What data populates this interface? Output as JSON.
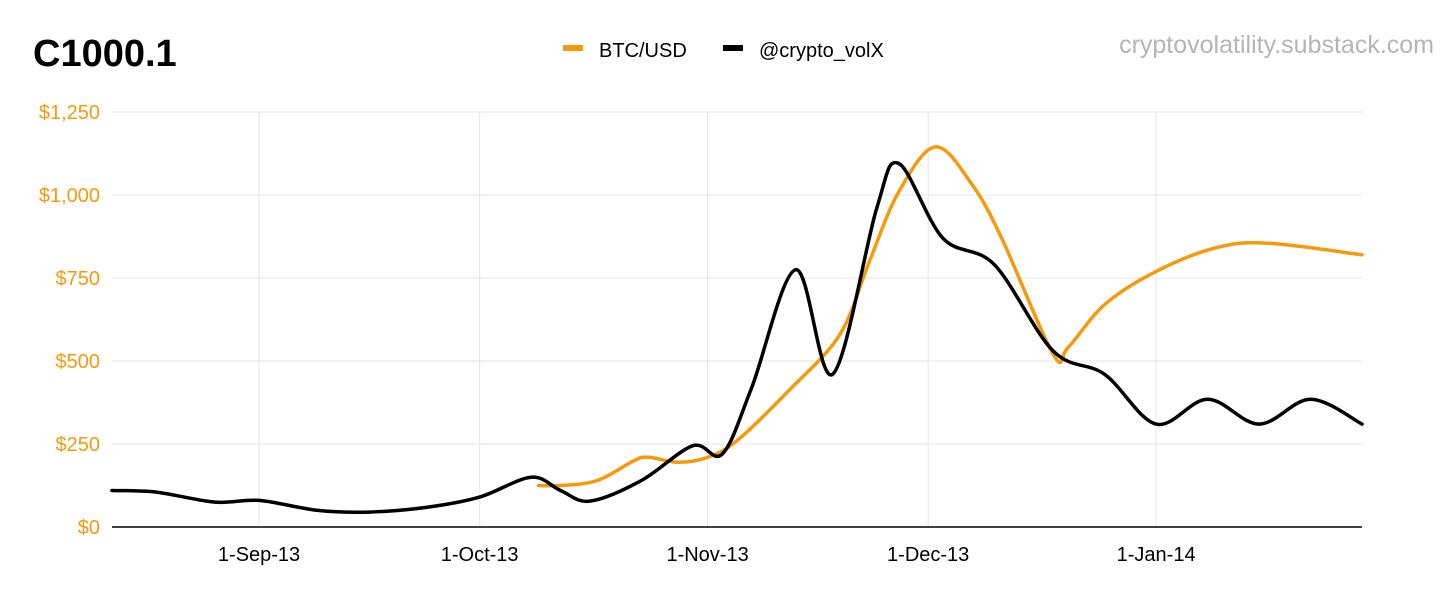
{
  "header": {
    "title": "C1000.1",
    "source": "cryptovolatility.substack.com"
  },
  "colors": {
    "btc": "#f59a0c",
    "vol": "#000000",
    "y_tick_text": "#f59a0c",
    "grid": "#e6e6e6",
    "source_text": "#b5b5b5"
  },
  "chart_data": {
    "type": "line",
    "title": "C1000.1",
    "legend_position": "top-center",
    "grid": true,
    "xlim": [
      "2013-08-12",
      "2014-01-29"
    ],
    "ylim": [
      0,
      1250
    ],
    "y_ticks": [
      0,
      250,
      500,
      750,
      1000,
      1250
    ],
    "y_tick_labels": [
      "$0",
      "$250",
      "$500",
      "$750",
      "$1,000",
      "$1,250"
    ],
    "x_ticks": [
      "2013-09-01",
      "2013-10-01",
      "2013-11-01",
      "2013-12-01",
      "2014-01-01"
    ],
    "x_tick_labels": [
      "1-Sep-13",
      "1-Oct-13",
      "1-Nov-13",
      "1-Dec-13",
      "1-Jan-14"
    ],
    "series": [
      {
        "name": "BTC/USD",
        "color": "#f59a0c",
        "points": [
          {
            "x": "2013-10-09",
            "y": 125
          },
          {
            "x": "2013-10-12",
            "y": 125
          },
          {
            "x": "2013-10-17",
            "y": 140
          },
          {
            "x": "2013-10-22",
            "y": 200
          },
          {
            "x": "2013-10-24",
            "y": 210
          },
          {
            "x": "2013-10-28",
            "y": 195
          },
          {
            "x": "2013-11-01",
            "y": 210
          },
          {
            "x": "2013-11-05",
            "y": 260
          },
          {
            "x": "2013-11-12",
            "y": 410
          },
          {
            "x": "2013-11-19",
            "y": 580
          },
          {
            "x": "2013-11-23",
            "y": 800
          },
          {
            "x": "2013-11-27",
            "y": 1010
          },
          {
            "x": "2013-12-02",
            "y": 1145
          },
          {
            "x": "2013-12-07",
            "y": 1030
          },
          {
            "x": "2013-12-11",
            "y": 870
          },
          {
            "x": "2013-12-18",
            "y": 520
          },
          {
            "x": "2013-12-20",
            "y": 540
          },
          {
            "x": "2013-12-25",
            "y": 670
          },
          {
            "x": "2014-01-01",
            "y": 770
          },
          {
            "x": "2014-01-09",
            "y": 840
          },
          {
            "x": "2014-01-16",
            "y": 855
          },
          {
            "x": "2014-01-29",
            "y": 820
          }
        ]
      },
      {
        "name": "@crypto_volX",
        "color": "#000000",
        "points": [
          {
            "x": "2013-08-12",
            "y": 110
          },
          {
            "x": "2013-08-18",
            "y": 105
          },
          {
            "x": "2013-08-26",
            "y": 75
          },
          {
            "x": "2013-09-01",
            "y": 80
          },
          {
            "x": "2013-09-09",
            "y": 50
          },
          {
            "x": "2013-09-16",
            "y": 45
          },
          {
            "x": "2013-09-24",
            "y": 60
          },
          {
            "x": "2013-10-01",
            "y": 90
          },
          {
            "x": "2013-10-08",
            "y": 150
          },
          {
            "x": "2013-10-12",
            "y": 110
          },
          {
            "x": "2013-10-16",
            "y": 78
          },
          {
            "x": "2013-10-23",
            "y": 140
          },
          {
            "x": "2013-10-30",
            "y": 245
          },
          {
            "x": "2013-11-03",
            "y": 220
          },
          {
            "x": "2013-11-07",
            "y": 420
          },
          {
            "x": "2013-11-13",
            "y": 775
          },
          {
            "x": "2013-11-18",
            "y": 460
          },
          {
            "x": "2013-11-24",
            "y": 960
          },
          {
            "x": "2013-11-27",
            "y": 1095
          },
          {
            "x": "2013-12-03",
            "y": 870
          },
          {
            "x": "2013-12-10",
            "y": 790
          },
          {
            "x": "2013-12-18",
            "y": 530
          },
          {
            "x": "2013-12-25",
            "y": 460
          },
          {
            "x": "2014-01-01",
            "y": 310
          },
          {
            "x": "2014-01-08",
            "y": 385
          },
          {
            "x": "2014-01-15",
            "y": 310
          },
          {
            "x": "2014-01-22",
            "y": 385
          },
          {
            "x": "2014-01-29",
            "y": 310
          }
        ]
      }
    ]
  }
}
